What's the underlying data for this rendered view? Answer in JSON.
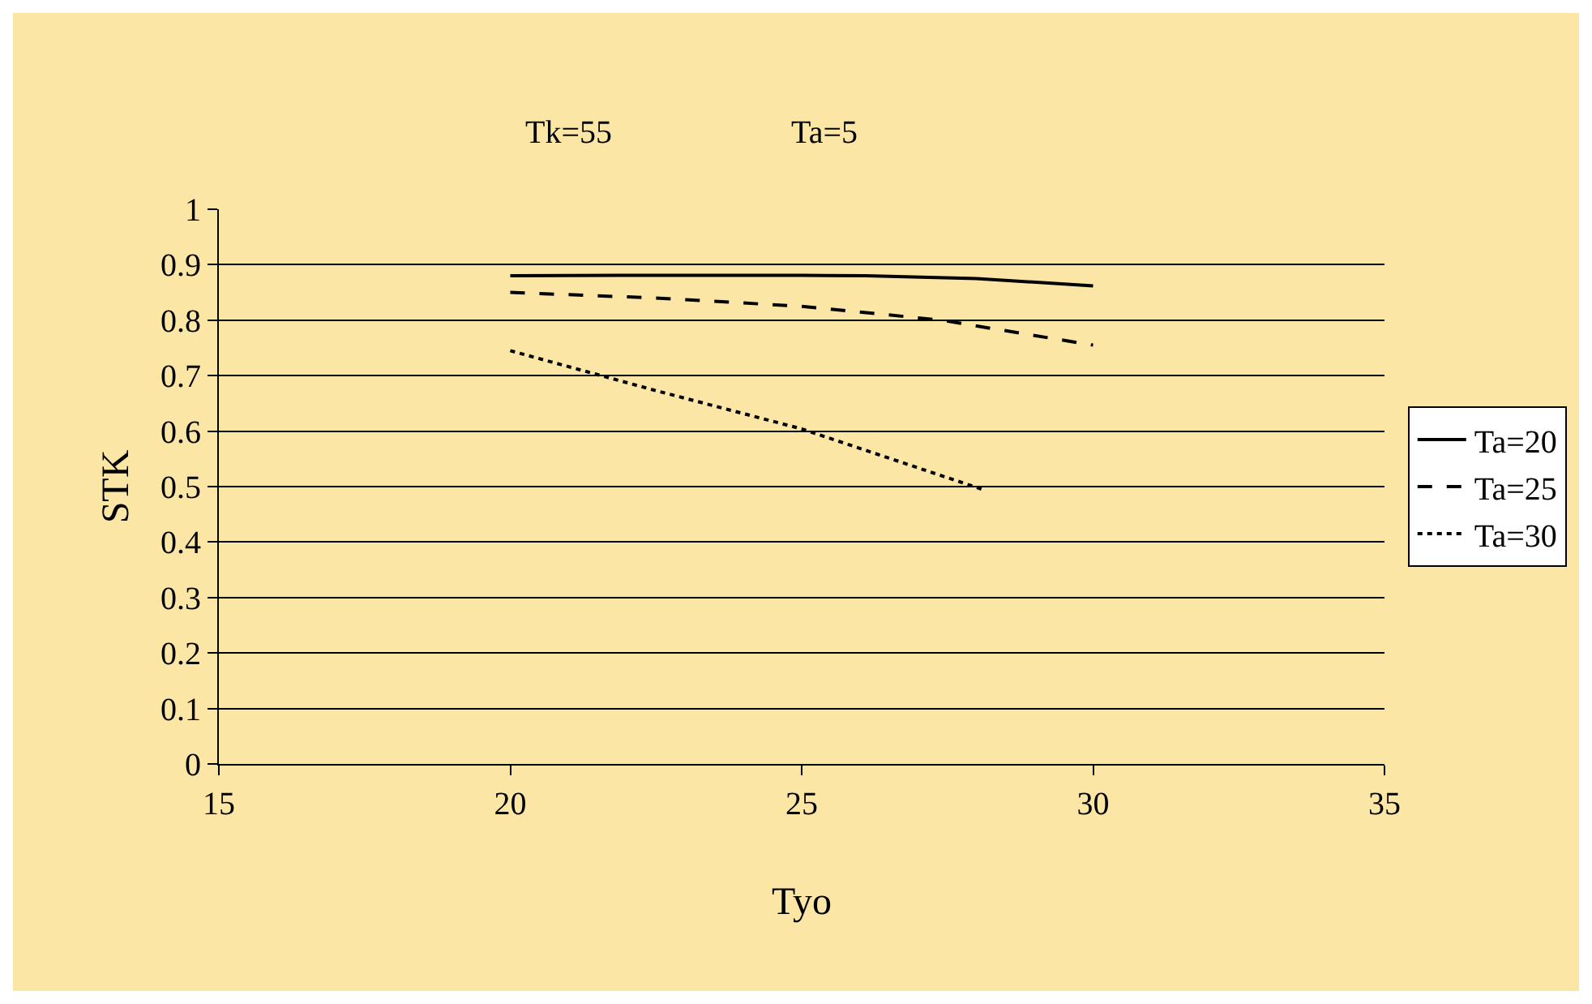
{
  "chart_data": {
    "type": "line",
    "annotations": [
      "Tk=55",
      "Ta=5"
    ],
    "xlabel": "Tyo",
    "ylabel": "STK",
    "xlim": [
      15,
      35
    ],
    "xticks": [
      15,
      20,
      25,
      30,
      35
    ],
    "ylim": [
      0,
      1
    ],
    "yticks": [
      0,
      0.1,
      0.2,
      0.3,
      0.4,
      0.5,
      0.6,
      0.7,
      0.8,
      0.9,
      1
    ],
    "grid": "y",
    "legend": "right",
    "marker": "none",
    "series": [
      {
        "name": "Ta=20",
        "color": "#000000",
        "line_style": "solid",
        "x": [
          20,
          22.5,
          25,
          26.1,
          28,
          30
        ],
        "values": [
          0.88,
          0.881,
          0.881,
          0.88,
          0.875,
          0.862
        ]
      },
      {
        "name": "Ta=25",
        "color": "#000000",
        "line_style": "dashed",
        "x": [
          20,
          22.5,
          25,
          27.4,
          30
        ],
        "values": [
          0.85,
          0.84,
          0.825,
          0.8,
          0.755
        ]
      },
      {
        "name": "Ta=30",
        "color": "#000000",
        "line_style": "dotted",
        "x": [
          20,
          22.5,
          25,
          28.1
        ],
        "values": [
          0.745,
          0.673,
          0.604,
          0.495
        ]
      }
    ]
  }
}
